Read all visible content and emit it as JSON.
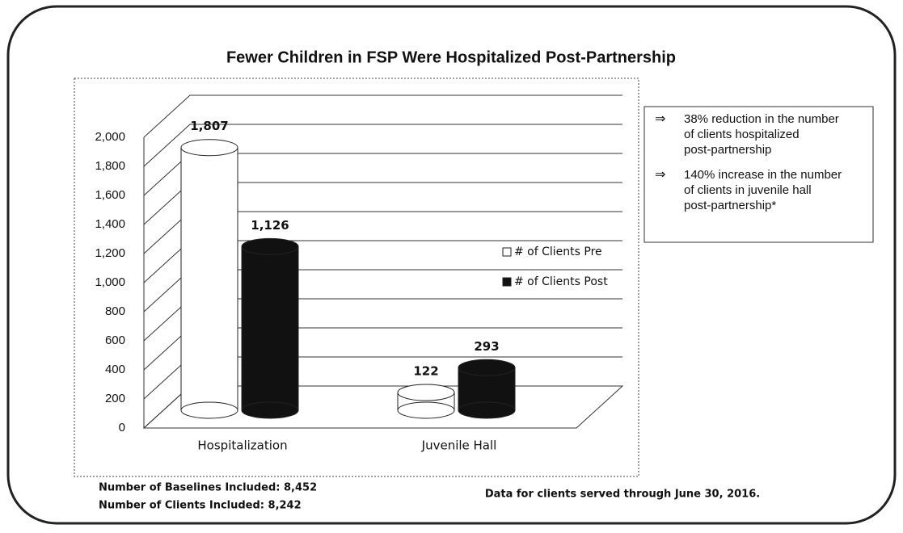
{
  "chart_data": {
    "type": "bar",
    "title": "Fewer Children in FSP Were Hospitalized Post-Partnership",
    "categories": [
      "Hospitalization",
      "Juvenile Hall"
    ],
    "series": [
      {
        "name": "# of Clients Pre",
        "color": "#ffffff",
        "values": [
          1807,
          122
        ],
        "value_labels": [
          "1,807",
          "122"
        ]
      },
      {
        "name": "# of Clients Post",
        "color": "#111111",
        "values": [
          1126,
          293
        ],
        "value_labels": [
          "1,126",
          "293"
        ]
      }
    ],
    "ylim": [
      0,
      2000
    ],
    "yticks": [
      0,
      200,
      400,
      600,
      800,
      {
        "value": 1000,
        "label": "1,000"
      },
      {
        "value": 1200,
        "label": "1,200"
      },
      {
        "value": 1400,
        "label": "1,400"
      },
      {
        "value": 1600,
        "label": "1,600"
      },
      {
        "value": 1800,
        "label": "1,800"
      },
      {
        "value": 2000,
        "label": "2,000"
      }
    ],
    "grid": true,
    "legend": "right",
    "notes": [
      "38% reduction in the number of clients hospitalized post-partnership",
      "140% increase in the number of clients in juvenile hall post-partnership*"
    ],
    "footnotes": [
      "Number of Baselines Included: 8,452",
      "Number of Clients Included: 8,242"
    ],
    "source": "Data for clients served through June 30, 2016."
  }
}
